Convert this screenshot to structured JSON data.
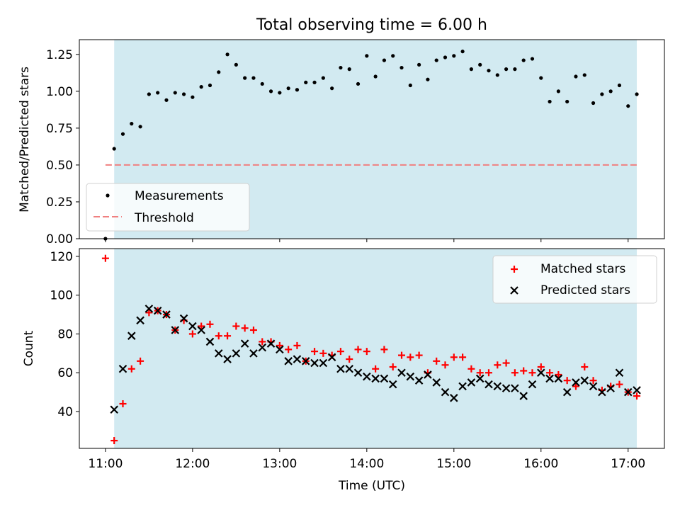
{
  "title": "Total observing time = 6.00 h",
  "colors": {
    "observing_span": "#add8e6",
    "measurements": "#000000",
    "threshold": "#f08080",
    "matched": "#ff0000",
    "predicted": "#000000"
  },
  "chart_data": [
    {
      "type": "scatter",
      "ylabel": "Matched/Predicted stars",
      "ylim": [
        0,
        1.35
      ],
      "yticks": [
        "0.00",
        "0.25",
        "0.50",
        "0.75",
        "1.00",
        "1.25"
      ],
      "xlim": [
        "10:42",
        "17:25"
      ],
      "observing_span": [
        "11:06",
        "17:06"
      ],
      "grid": false,
      "legend": {
        "position": "lower-left",
        "entries": [
          "Measurements",
          "Threshold"
        ]
      },
      "threshold": {
        "name": "Threshold",
        "y": 0.5,
        "x": [
          "11:00",
          "17:06"
        ]
      },
      "series": [
        {
          "name": "Measurements",
          "x": [
            "11:00",
            "11:06",
            "11:12",
            "11:18",
            "11:24",
            "11:30",
            "11:36",
            "11:42",
            "11:48",
            "11:54",
            "12:00",
            "12:06",
            "12:12",
            "12:18",
            "12:24",
            "12:30",
            "12:36",
            "12:42",
            "12:48",
            "12:54",
            "13:00",
            "13:06",
            "13:12",
            "13:18",
            "13:24",
            "13:30",
            "13:36",
            "13:42",
            "13:48",
            "13:54",
            "14:00",
            "14:06",
            "14:12",
            "14:18",
            "14:24",
            "14:30",
            "14:36",
            "14:42",
            "14:48",
            "14:54",
            "15:00",
            "15:06",
            "15:12",
            "15:18",
            "15:24",
            "15:30",
            "15:36",
            "15:42",
            "15:48",
            "15:54",
            "16:00",
            "16:06",
            "16:12",
            "16:18",
            "16:24",
            "16:30",
            "16:36",
            "16:42",
            "16:48",
            "16:54",
            "17:00",
            "17:06"
          ],
          "y": [
            0.0,
            0.61,
            0.71,
            0.78,
            0.76,
            0.98,
            0.99,
            0.94,
            0.99,
            0.98,
            0.96,
            1.03,
            1.04,
            1.13,
            1.25,
            1.18,
            1.09,
            1.09,
            1.05,
            1.0,
            0.99,
            1.02,
            1.01,
            1.06,
            1.06,
            1.09,
            1.02,
            1.16,
            1.15,
            1.05,
            1.24,
            1.1,
            1.21,
            1.24,
            1.16,
            1.04,
            1.18,
            1.08,
            1.21,
            1.23,
            1.24,
            1.27,
            1.15,
            1.18,
            1.14,
            1.11,
            1.15,
            1.15,
            1.21,
            1.22,
            1.09,
            0.93,
            1.0,
            0.93,
            1.1,
            1.11,
            0.92,
            0.98,
            1.0,
            1.04,
            0.9,
            0.98
          ]
        }
      ]
    },
    {
      "type": "scatter",
      "xlabel": "Time (UTC)",
      "ylabel": "Count",
      "ylim": [
        21,
        124
      ],
      "yticks": [
        "40",
        "60",
        "80",
        "100",
        "120"
      ],
      "xlim": [
        "10:42",
        "17:25"
      ],
      "xticks": [
        "11:00",
        "12:00",
        "13:00",
        "14:00",
        "15:00",
        "16:00",
        "17:00"
      ],
      "observing_span": [
        "11:06",
        "17:06"
      ],
      "grid": false,
      "legend": {
        "position": "top-right",
        "entries": [
          "Matched stars",
          "Predicted stars"
        ]
      },
      "series": [
        {
          "name": "Matched stars",
          "marker": "plus",
          "x": [
            "11:00",
            "11:06",
            "11:12",
            "11:18",
            "11:24",
            "11:30",
            "11:36",
            "11:42",
            "11:48",
            "11:54",
            "12:00",
            "12:06",
            "12:12",
            "12:18",
            "12:24",
            "12:30",
            "12:36",
            "12:42",
            "12:48",
            "12:54",
            "13:00",
            "13:06",
            "13:12",
            "13:18",
            "13:24",
            "13:30",
            "13:36",
            "13:42",
            "13:48",
            "13:54",
            "14:00",
            "14:06",
            "14:12",
            "14:18",
            "14:24",
            "14:30",
            "14:36",
            "14:42",
            "14:48",
            "14:54",
            "15:00",
            "15:06",
            "15:12",
            "15:18",
            "15:24",
            "15:30",
            "15:36",
            "15:42",
            "15:48",
            "15:54",
            "16:00",
            "16:06",
            "16:12",
            "16:18",
            "16:24",
            "16:30",
            "16:36",
            "16:42",
            "16:48",
            "16:54",
            "17:00",
            "17:06"
          ],
          "y": [
            119,
            25,
            44,
            62,
            66,
            91,
            92,
            90,
            82,
            87,
            80,
            84,
            85,
            79,
            79,
            84,
            83,
            82,
            76,
            76,
            74,
            72,
            74,
            66,
            71,
            70,
            69,
            71,
            67,
            72,
            71,
            62,
            72,
            63,
            69,
            68,
            69,
            60,
            66,
            64,
            68,
            68,
            62,
            60,
            60,
            64,
            65,
            60,
            61,
            60,
            63,
            60,
            59,
            56,
            53,
            63,
            56,
            51,
            53,
            54,
            50,
            48
          ]
        },
        {
          "name": "Predicted stars",
          "marker": "x",
          "x": [
            "11:06",
            "11:12",
            "11:18",
            "11:24",
            "11:30",
            "11:36",
            "11:42",
            "11:48",
            "11:54",
            "12:00",
            "12:06",
            "12:12",
            "12:18",
            "12:24",
            "12:30",
            "12:36",
            "12:42",
            "12:48",
            "12:54",
            "13:00",
            "13:06",
            "13:12",
            "13:18",
            "13:24",
            "13:30",
            "13:36",
            "13:42",
            "13:48",
            "13:54",
            "14:00",
            "14:06",
            "14:12",
            "14:18",
            "14:24",
            "14:30",
            "14:36",
            "14:42",
            "14:48",
            "14:54",
            "15:00",
            "15:06",
            "15:12",
            "15:18",
            "15:24",
            "15:30",
            "15:36",
            "15:42",
            "15:48",
            "15:54",
            "16:00",
            "16:06",
            "16:12",
            "16:18",
            "16:24",
            "16:30",
            "16:36",
            "16:42",
            "16:48",
            "16:54",
            "17:00",
            "17:06"
          ],
          "y": [
            41,
            62,
            79,
            87,
            93,
            92,
            90,
            82,
            88,
            84,
            82,
            76,
            70,
            67,
            70,
            75,
            70,
            73,
            75,
            72,
            66,
            67,
            66,
            65,
            65,
            68,
            62,
            62,
            60,
            58,
            57,
            57,
            54,
            60,
            58,
            56,
            59,
            55,
            50,
            47,
            53,
            55,
            57,
            54,
            53,
            52,
            52,
            48,
            54,
            60,
            57,
            57,
            50,
            55,
            56,
            53,
            50,
            52,
            60,
            50,
            51
          ]
        }
      ]
    }
  ]
}
